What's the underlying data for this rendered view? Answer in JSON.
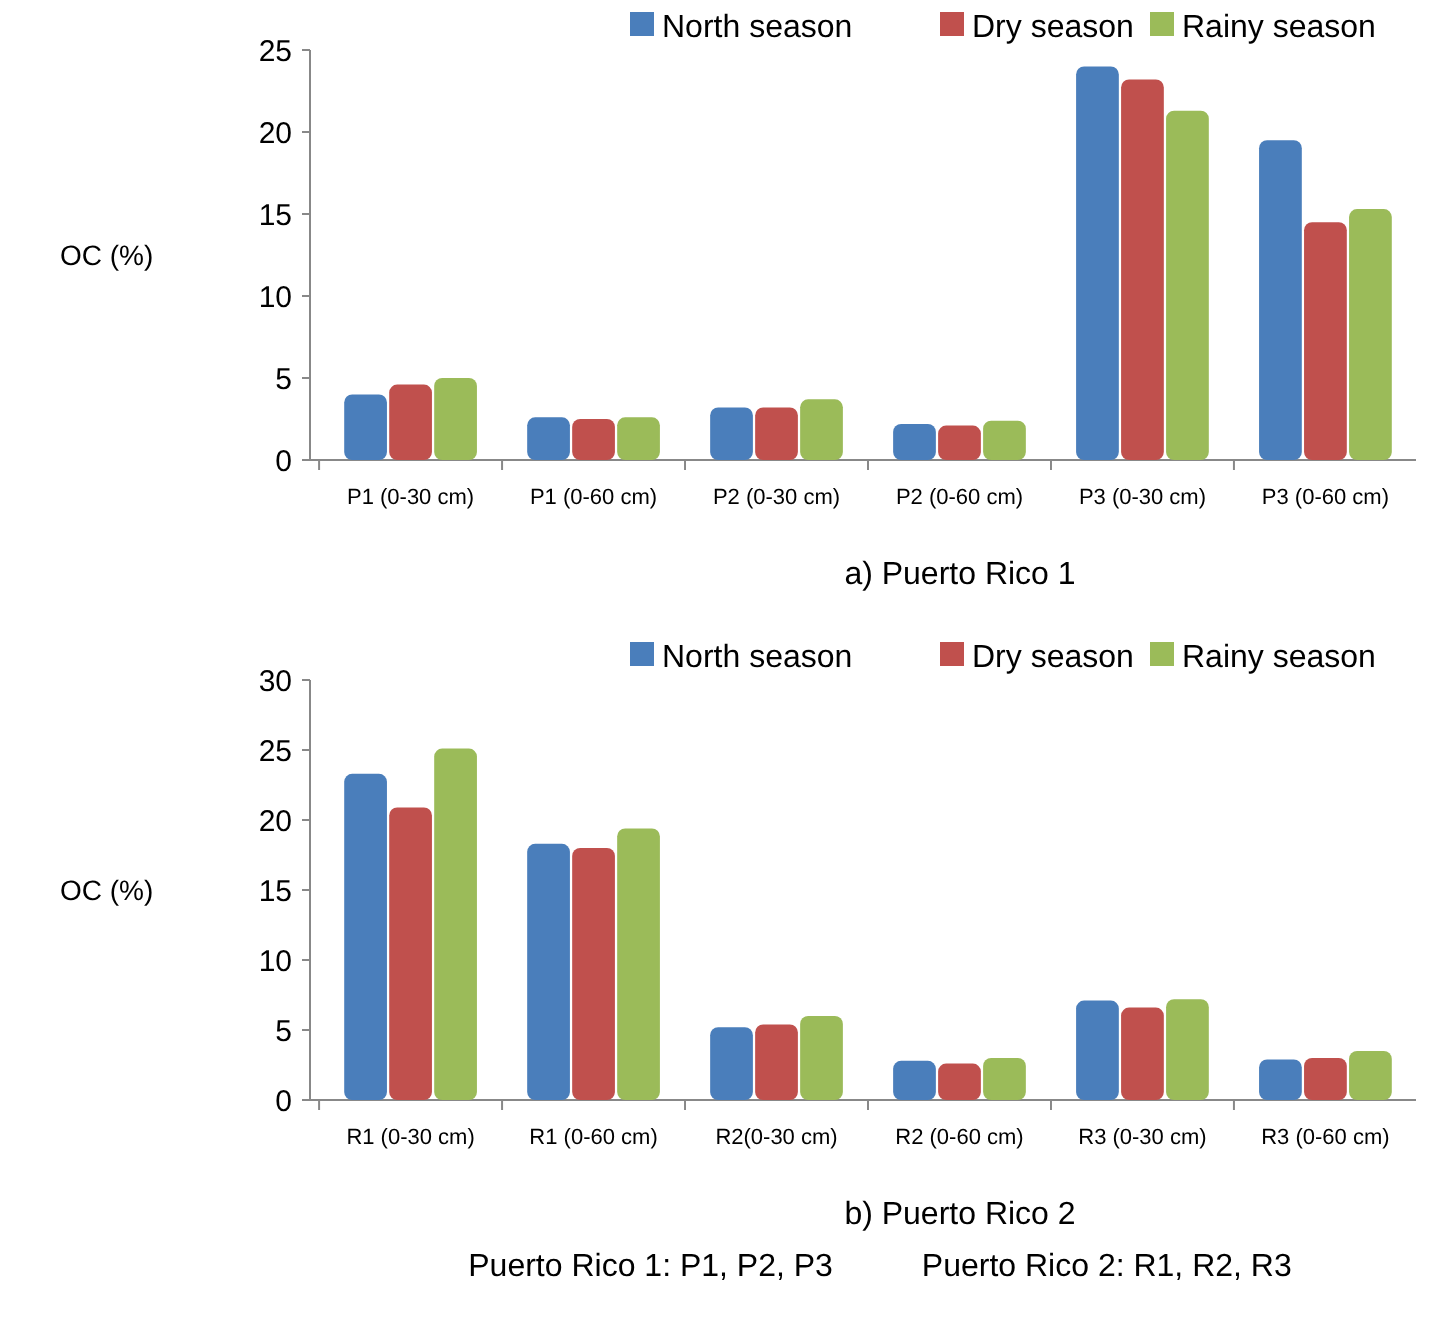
{
  "chart_data": [
    {
      "type": "bar",
      "title": "a) Puerto Rico 1",
      "ylabel": "OC (%)",
      "categories": [
        "P1 (0-30 cm)",
        "P1 (0-60 cm)",
        "P2 (0-30 cm)",
        "P2 (0-60 cm)",
        "P3 (0-30 cm)",
        "P3 (0-60 cm)"
      ],
      "series": [
        {
          "name": "North season",
          "color": "#4a7ebb",
          "values": [
            4.0,
            2.6,
            3.2,
            2.2,
            24.0,
            19.5
          ]
        },
        {
          "name": "Dry season",
          "color": "#c0504d",
          "values": [
            4.6,
            2.5,
            3.2,
            2.1,
            23.2,
            14.5
          ]
        },
        {
          "name": "Rainy season",
          "color": "#9bbb59",
          "values": [
            5.0,
            2.6,
            3.7,
            2.4,
            21.3,
            15.3
          ]
        }
      ],
      "ylim": [
        0,
        25
      ],
      "yticks": [
        0,
        5,
        10,
        15,
        20,
        25
      ],
      "legend": "top"
    },
    {
      "type": "bar",
      "title": "b) Puerto Rico 2",
      "ylabel": "OC (%)",
      "categories": [
        "R1 (0-30 cm)",
        "R1 (0-60 cm)",
        "R2(0-30 cm)",
        "R2 (0-60 cm)",
        "R3 (0-30 cm)",
        "R3 (0-60 cm)"
      ],
      "series": [
        {
          "name": "North season",
          "color": "#4a7ebb",
          "values": [
            23.3,
            18.3,
            5.2,
            2.8,
            7.1,
            2.9
          ]
        },
        {
          "name": "Dry season",
          "color": "#c0504d",
          "values": [
            20.9,
            18.0,
            5.4,
            2.6,
            6.6,
            3.0
          ]
        },
        {
          "name": "Rainy season",
          "color": "#9bbb59",
          "values": [
            25.1,
            19.4,
            6.0,
            3.0,
            7.2,
            3.5
          ]
        }
      ],
      "ylim": [
        0,
        30
      ],
      "yticks": [
        0,
        5,
        10,
        15,
        20,
        25,
        30
      ],
      "legend": "top",
      "annotations": [
        "Puerto Rico 1: P1, P2, P3          Puerto Rico 2: R1, R2, R3"
      ]
    }
  ]
}
